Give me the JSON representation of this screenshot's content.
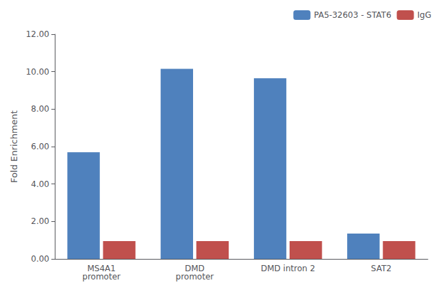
{
  "chart_data": {
    "type": "bar",
    "categories": [
      "MS4A1\npromoter",
      "DMD\npromoter",
      "DMD intron 2",
      "SAT2"
    ],
    "series": [
      {
        "name": "PA5-32603 - STAT6",
        "color": "#4F81BD",
        "values": [
          5.7,
          10.15,
          9.65,
          1.35
        ]
      },
      {
        "name": "IgG",
        "color": "#C0504D",
        "values": [
          0.95,
          0.95,
          0.95,
          0.95
        ]
      }
    ],
    "ylabel": "Fold Enrichment",
    "ylim": [
      0,
      12.0
    ],
    "yticks": [
      {
        "value": 0.0,
        "label": "0.00"
      },
      {
        "value": 2.0,
        "label": "2.00"
      },
      {
        "value": 4.0,
        "label": "4.00"
      },
      {
        "value": 6.0,
        "label": "6.00"
      },
      {
        "value": 8.0,
        "label": "8.00"
      },
      {
        "value": 10.0,
        "label": "10.00"
      },
      {
        "value": 12.0,
        "label": "12.00"
      }
    ],
    "grid": false,
    "legend": "upper right"
  }
}
